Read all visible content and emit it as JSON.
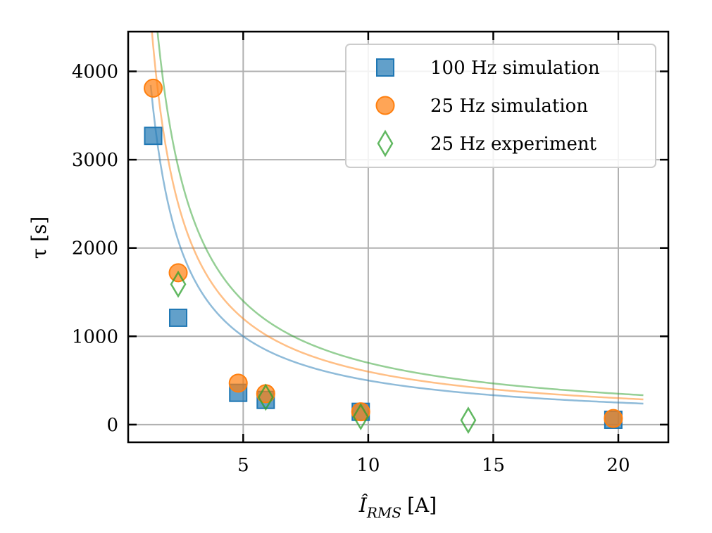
{
  "chart_data": {
    "type": "scatter",
    "title": "",
    "xlabel": "Î_RMS [A]",
    "xlabel_main": "Î",
    "xlabel_sub": "RMS",
    "xlabel_unit": "[A]",
    "ylabel": "τ [s]",
    "xlim": [
      0.4,
      22
    ],
    "ylim": [
      -200,
      4450
    ],
    "xticks": [
      5,
      10,
      15,
      20
    ],
    "xtick_labels": [
      "5",
      "10",
      "15",
      "20"
    ],
    "yticks": [
      0,
      1000,
      2000,
      3000,
      4000
    ],
    "ytick_labels": [
      "0",
      "1000",
      "2000",
      "3000",
      "4000"
    ],
    "grid": true,
    "legend_position": "top-right",
    "series": [
      {
        "name": "100 Hz simulation",
        "marker": "square",
        "color": "#1f77b4",
        "x": [
          1.4,
          2.4,
          4.8,
          5.9,
          9.7,
          19.8
        ],
        "y": [
          3270,
          1210,
          360,
          280,
          145,
          55
        ],
        "fit": {
          "a": 5000,
          "b": 1.0
        }
      },
      {
        "name": "25 Hz simulation",
        "marker": "circle",
        "color": "#ff7f0e",
        "x": [
          1.4,
          2.4,
          4.8,
          5.9,
          9.7,
          19.8
        ],
        "y": [
          3810,
          1720,
          470,
          350,
          145,
          70
        ],
        "fit": {
          "a": 6000,
          "b": 1.0
        }
      },
      {
        "name": "25 Hz experiment",
        "marker": "diamond",
        "color": "#2ca02c",
        "x": [
          2.4,
          5.9,
          9.7,
          14.0
        ],
        "y": [
          1590,
          310,
          90,
          50
        ],
        "fit": {
          "a": 7000,
          "b": 1.0
        }
      }
    ],
    "fit_x_range": [
      1.3,
      21
    ]
  }
}
